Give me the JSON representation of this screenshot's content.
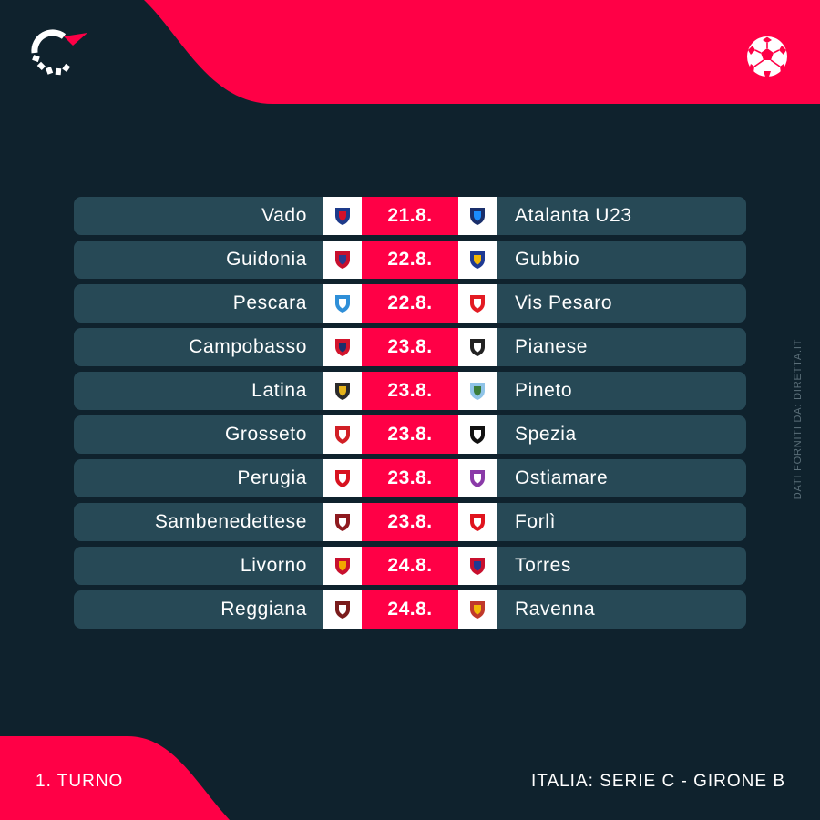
{
  "colors": {
    "background": "#0f222d",
    "accent": "#ff0046",
    "row": "#274956",
    "text": "#ffffff"
  },
  "brand_icon": "flashscore-logo",
  "sport_icon": "soccer-ball-icon",
  "credit": "DATI FORNITI DA: DIRETTA.IT",
  "footer": {
    "round": "1. TURNO",
    "league": "ITALIA: SERIE C - GIRONE B"
  },
  "fixtures": [
    {
      "home": "Vado",
      "date": "21.8.",
      "away": "Atalanta U23",
      "home_crest": {
        "color": "#1d3a8a",
        "accent": "#d4102a"
      },
      "away_crest": {
        "color": "#1a2f6b",
        "accent": "#1a8cff"
      }
    },
    {
      "home": "Guidonia",
      "date": "22.8.",
      "away": "Gubbio",
      "home_crest": {
        "color": "#c8102e",
        "accent": "#2a3b8f"
      },
      "away_crest": {
        "color": "#1f3a93",
        "accent": "#f2b705"
      }
    },
    {
      "home": "Pescara",
      "date": "22.8.",
      "away": "Vis Pesaro",
      "home_crest": {
        "color": "#2f8fd8",
        "accent": "#ffffff"
      },
      "away_crest": {
        "color": "#e31b23",
        "accent": "#ffffff"
      }
    },
    {
      "home": "Campobasso",
      "date": "23.8.",
      "away": "Pianese",
      "home_crest": {
        "color": "#d2152d",
        "accent": "#1c2f6b"
      },
      "away_crest": {
        "color": "#222222",
        "accent": "#ffffff"
      }
    },
    {
      "home": "Latina",
      "date": "23.8.",
      "away": "Pineto",
      "home_crest": {
        "color": "#2b2b2b",
        "accent": "#e5b31a"
      },
      "away_crest": {
        "color": "#8fc4e8",
        "accent": "#3a7d3a"
      }
    },
    {
      "home": "Grosseto",
      "date": "23.8.",
      "away": "Spezia",
      "home_crest": {
        "color": "#d11f26",
        "accent": "#ffffff"
      },
      "away_crest": {
        "color": "#111111",
        "accent": "#ffffff"
      }
    },
    {
      "home": "Perugia",
      "date": "23.8.",
      "away": "Ostiamare",
      "home_crest": {
        "color": "#d8121f",
        "accent": "#ffffff"
      },
      "away_crest": {
        "color": "#8a3aa8",
        "accent": "#ffffff"
      }
    },
    {
      "home": "Sambenedettese",
      "date": "23.8.",
      "away": "Forlì",
      "home_crest": {
        "color": "#8e1a1f",
        "accent": "#ffffff"
      },
      "away_crest": {
        "color": "#e0141e",
        "accent": "#ffffff"
      }
    },
    {
      "home": "Livorno",
      "date": "24.8.",
      "away": "Torres",
      "home_crest": {
        "color": "#c8102e",
        "accent": "#f2a900"
      },
      "away_crest": {
        "color": "#c8102e",
        "accent": "#1f3a93"
      }
    },
    {
      "home": "Reggiana",
      "date": "24.8.",
      "away": "Ravenna",
      "home_crest": {
        "color": "#7a1c1c",
        "accent": "#ffffff"
      },
      "away_crest": {
        "color": "#c0392b",
        "accent": "#f2b705"
      }
    }
  ]
}
